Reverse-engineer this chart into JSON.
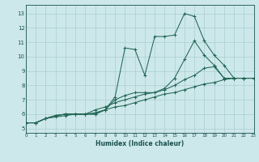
{
  "xlabel": "Humidex (Indice chaleur)",
  "xlim": [
    0,
    23
  ],
  "ylim": [
    4.7,
    13.6
  ],
  "yticks": [
    5,
    6,
    7,
    8,
    9,
    10,
    11,
    12,
    13
  ],
  "xticks": [
    0,
    1,
    2,
    3,
    4,
    5,
    6,
    7,
    8,
    9,
    10,
    11,
    12,
    13,
    14,
    15,
    16,
    17,
    18,
    19,
    20,
    21,
    22,
    23
  ],
  "bg_color": "#cde8ea",
  "grid_color": "#aacdd4",
  "line_color": "#226655",
  "lines": [
    {
      "x": [
        0,
        1,
        2,
        3,
        4,
        5,
        6,
        7,
        8,
        9,
        10,
        11,
        12,
        13,
        14,
        15,
        16,
        17,
        18,
        19,
        20,
        21,
        22,
        23
      ],
      "y": [
        5.4,
        5.4,
        5.7,
        5.9,
        6.0,
        6.0,
        6.0,
        6.0,
        6.3,
        7.2,
        10.6,
        10.5,
        8.7,
        11.4,
        11.4,
        11.5,
        13.0,
        12.8,
        11.1,
        10.1,
        9.4,
        8.5,
        8.5,
        8.5
      ]
    },
    {
      "x": [
        0,
        1,
        2,
        3,
        4,
        5,
        6,
        7,
        8,
        9,
        10,
        11,
        12,
        13,
        14,
        15,
        16,
        17,
        18,
        19,
        20,
        21,
        22,
        23
      ],
      "y": [
        5.4,
        5.4,
        5.7,
        5.9,
        6.0,
        6.0,
        6.0,
        6.0,
        6.3,
        7.0,
        7.3,
        7.5,
        7.5,
        7.5,
        7.8,
        8.5,
        9.8,
        11.1,
        10.1,
        9.4,
        8.5,
        8.5,
        8.5,
        8.5
      ]
    },
    {
      "x": [
        0,
        1,
        2,
        3,
        4,
        5,
        6,
        7,
        8,
        9,
        10,
        11,
        12,
        13,
        14,
        15,
        16,
        17,
        18,
        19,
        20,
        21,
        22,
        23
      ],
      "y": [
        5.4,
        5.4,
        5.7,
        5.9,
        6.0,
        6.0,
        6.0,
        6.3,
        6.5,
        6.8,
        7.0,
        7.2,
        7.4,
        7.5,
        7.7,
        8.0,
        8.4,
        8.7,
        9.2,
        9.3,
        8.5,
        8.5,
        8.5,
        8.5
      ]
    },
    {
      "x": [
        0,
        1,
        2,
        3,
        4,
        5,
        6,
        7,
        8,
        9,
        10,
        11,
        12,
        13,
        14,
        15,
        16,
        17,
        18,
        19,
        20,
        21,
        22,
        23
      ],
      "y": [
        5.4,
        5.4,
        5.7,
        5.8,
        5.9,
        6.0,
        6.0,
        6.1,
        6.3,
        6.5,
        6.6,
        6.8,
        7.0,
        7.2,
        7.4,
        7.5,
        7.7,
        7.9,
        8.1,
        8.2,
        8.4,
        8.5,
        8.5,
        8.5
      ]
    }
  ]
}
